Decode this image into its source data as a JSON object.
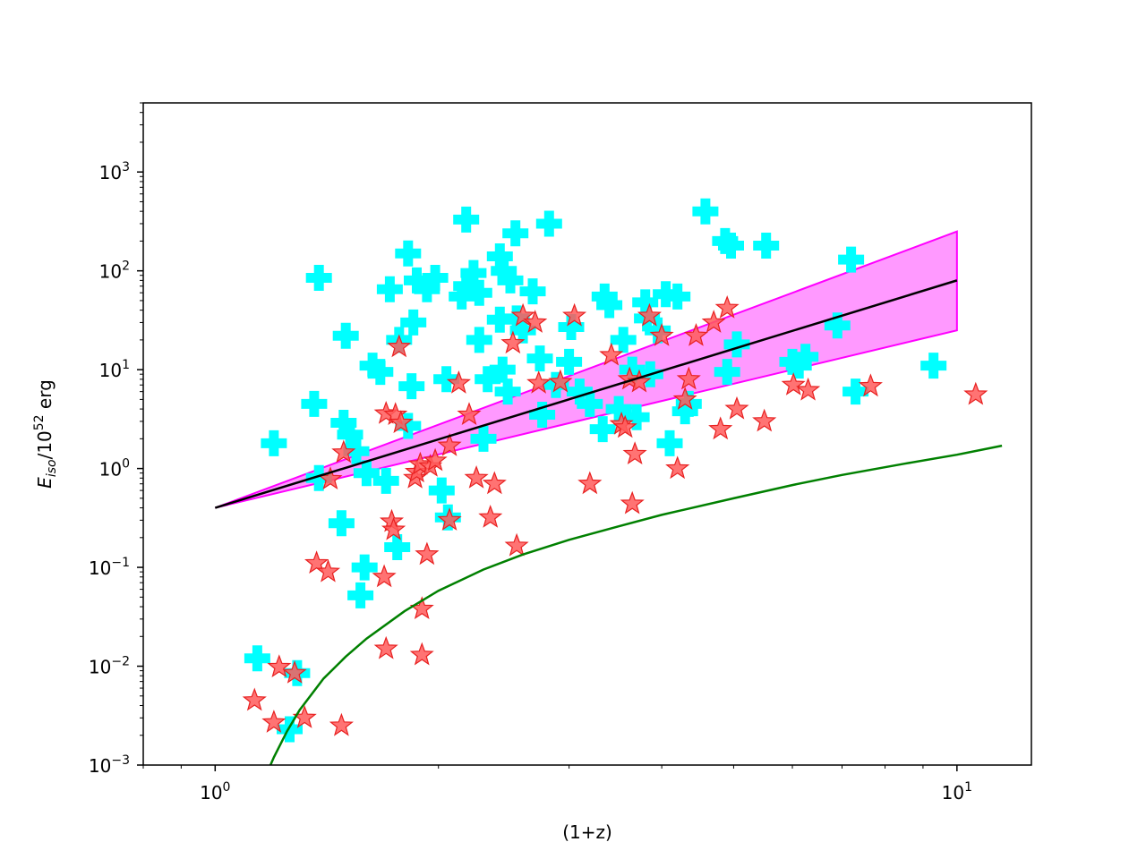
{
  "chart_data": {
    "type": "scatter",
    "xlabel": "(1+z)",
    "ylabel_parts": {
      "base": "E",
      "sub": "iso",
      "mid": "/10",
      "sup": "52",
      "end": " erg"
    },
    "x_scale": "log",
    "y_scale": "log",
    "xlim": [
      0.8,
      12.6
    ],
    "ylim": [
      0.001,
      5000
    ],
    "grid": false,
    "x_ticks": [
      {
        "value": 1,
        "base": "10",
        "exp": "0"
      },
      {
        "value": 10,
        "base": "10",
        "exp": "1"
      }
    ],
    "y_ticks": [
      {
        "value": 0.001,
        "base": "10",
        "exp": "−3"
      },
      {
        "value": 0.01,
        "base": "10",
        "exp": "−2"
      },
      {
        "value": 0.1,
        "base": "10",
        "exp": "−1"
      },
      {
        "value": 1,
        "base": "10",
        "exp": "0"
      },
      {
        "value": 10,
        "base": "10",
        "exp": "1"
      },
      {
        "value": 100,
        "base": "10",
        "exp": "2"
      },
      {
        "value": 1000,
        "base": "10",
        "exp": "3"
      }
    ],
    "colors": {
      "cross": "#00ffff",
      "star_fill": "#ff5a5a",
      "star_edge": "#e82020",
      "band_fill": "#ff99ff",
      "band_edge": "#ff00ff",
      "fit_line": "#000000",
      "limit_curve": "#008000"
    },
    "series": [
      {
        "marker": "plus",
        "points": [
          [
            1.14,
            0.012
          ],
          [
            1.29,
            0.0085
          ],
          [
            1.26,
            0.0023
          ],
          [
            1.38,
            85
          ],
          [
            1.36,
            4.5
          ],
          [
            1.2,
            1.8
          ],
          [
            1.38,
            0.8
          ],
          [
            1.5,
            22
          ],
          [
            1.49,
            2.9
          ],
          [
            1.52,
            2.2
          ],
          [
            1.55,
            1.5
          ],
          [
            1.48,
            0.28
          ],
          [
            1.59,
            0.1
          ],
          [
            1.57,
            0.052
          ],
          [
            1.63,
            11
          ],
          [
            1.67,
            9.5
          ],
          [
            1.6,
            0.9
          ],
          [
            1.7,
            0.75
          ],
          [
            1.72,
            65
          ],
          [
            1.77,
            20
          ],
          [
            1.82,
            2.7
          ],
          [
            1.76,
            0.16
          ],
          [
            1.82,
            150
          ],
          [
            1.85,
            30
          ],
          [
            1.84,
            6.8
          ],
          [
            1.87,
            80
          ],
          [
            1.93,
            65
          ],
          [
            1.98,
            85
          ],
          [
            2.05,
            8
          ],
          [
            2.02,
            0.6
          ],
          [
            2.06,
            0.32
          ],
          [
            2.15,
            55
          ],
          [
            2.18,
            70
          ],
          [
            2.23,
            95
          ],
          [
            2.27,
            60
          ],
          [
            2.18,
            330
          ],
          [
            2.27,
            20
          ],
          [
            2.3,
            2
          ],
          [
            2.33,
            8
          ],
          [
            2.42,
            140
          ],
          [
            2.45,
            100
          ],
          [
            2.42,
            32
          ],
          [
            2.44,
            10
          ],
          [
            2.48,
            6
          ],
          [
            2.5,
            80
          ],
          [
            2.54,
            240
          ],
          [
            2.55,
            33
          ],
          [
            2.6,
            25
          ],
          [
            2.68,
            62
          ],
          [
            2.74,
            13
          ],
          [
            2.76,
            3.5
          ],
          [
            2.82,
            300
          ],
          [
            2.88,
            7
          ],
          [
            3.0,
            12
          ],
          [
            3.02,
            27
          ],
          [
            3.1,
            6
          ],
          [
            3.2,
            4.5
          ],
          [
            3.33,
            2.5
          ],
          [
            3.35,
            55
          ],
          [
            3.4,
            45
          ],
          [
            3.5,
            4
          ],
          [
            3.55,
            20
          ],
          [
            3.65,
            10
          ],
          [
            3.7,
            3.3
          ],
          [
            3.8,
            48
          ],
          [
            3.82,
            33
          ],
          [
            3.86,
            9
          ],
          [
            3.95,
            25
          ],
          [
            4.05,
            58
          ],
          [
            4.1,
            1.8
          ],
          [
            4.2,
            55
          ],
          [
            4.3,
            3.8
          ],
          [
            4.35,
            4.5
          ],
          [
            4.58,
            400
          ],
          [
            4.87,
            200
          ],
          [
            4.96,
            180
          ],
          [
            4.9,
            9.5
          ],
          [
            5.05,
            18
          ],
          [
            5.53,
            180
          ],
          [
            6.0,
            12
          ],
          [
            6.12,
            11
          ],
          [
            6.25,
            13.5
          ],
          [
            6.9,
            28
          ],
          [
            7.2,
            130
          ],
          [
            7.3,
            6
          ],
          [
            9.3,
            11
          ]
        ]
      },
      {
        "marker": "star",
        "points": [
          [
            1.13,
            0.0045
          ],
          [
            1.2,
            0.0027
          ],
          [
            1.22,
            0.0098
          ],
          [
            1.28,
            0.0085
          ],
          [
            1.32,
            0.003
          ],
          [
            1.37,
            0.11
          ],
          [
            1.42,
            0.09
          ],
          [
            1.43,
            0.78
          ],
          [
            1.49,
            1.45
          ],
          [
            1.48,
            0.0025
          ],
          [
            1.69,
            0.08
          ],
          [
            1.7,
            3.6
          ],
          [
            1.73,
            0.29
          ],
          [
            1.74,
            0.24
          ],
          [
            1.75,
            3.5
          ],
          [
            1.7,
            0.015
          ],
          [
            1.78,
            2.9
          ],
          [
            1.77,
            17
          ],
          [
            1.86,
            0.8
          ],
          [
            1.87,
            0.92
          ],
          [
            1.89,
            1.1
          ],
          [
            1.9,
            0.038
          ],
          [
            1.9,
            0.013
          ],
          [
            1.93,
            0.135
          ],
          [
            1.95,
            1.05
          ],
          [
            1.98,
            1.2
          ],
          [
            2.07,
            1.7
          ],
          [
            2.07,
            0.3
          ],
          [
            2.13,
            7.3
          ],
          [
            2.2,
            3.5
          ],
          [
            2.25,
            0.8
          ],
          [
            2.35,
            0.32
          ],
          [
            2.38,
            0.7
          ],
          [
            2.52,
            18.5
          ],
          [
            2.55,
            0.165
          ],
          [
            2.6,
            35
          ],
          [
            2.7,
            30
          ],
          [
            2.73,
            7.3
          ],
          [
            2.92,
            7.5
          ],
          [
            3.05,
            35
          ],
          [
            3.2,
            0.7
          ],
          [
            3.42,
            14
          ],
          [
            3.53,
            2.8
          ],
          [
            3.57,
            2.6
          ],
          [
            3.62,
            8
          ],
          [
            3.65,
            0.44
          ],
          [
            3.68,
            1.4
          ],
          [
            3.73,
            7.5
          ],
          [
            3.85,
            35
          ],
          [
            4.0,
            22
          ],
          [
            4.2,
            1.0
          ],
          [
            4.3,
            5
          ],
          [
            4.35,
            8
          ],
          [
            4.45,
            22
          ],
          [
            4.7,
            30
          ],
          [
            4.8,
            2.5
          ],
          [
            4.9,
            42
          ],
          [
            5.05,
            4
          ],
          [
            5.5,
            3
          ],
          [
            6.02,
            7
          ],
          [
            6.3,
            6.2
          ],
          [
            7.65,
            6.8
          ],
          [
            10.6,
            5.6
          ]
        ]
      }
    ],
    "fit_line": {
      "x": [
        1,
        10
      ],
      "y": [
        0.4,
        80
      ]
    },
    "band": {
      "x": [
        1,
        10
      ],
      "upper": [
        0.4,
        250
      ],
      "lower": [
        0.4,
        25
      ]
    },
    "limit_curve": {
      "x": [
        1.18,
        1.2,
        1.25,
        1.3,
        1.4,
        1.5,
        1.6,
        1.8,
        2.0,
        2.3,
        2.6,
        3.0,
        3.5,
        4.0,
        5.0,
        6.0,
        7.0,
        8.5,
        10.0,
        11.5
      ],
      "y": [
        0.0009,
        0.0012,
        0.0022,
        0.0036,
        0.0075,
        0.0125,
        0.019,
        0.036,
        0.058,
        0.095,
        0.135,
        0.19,
        0.26,
        0.34,
        0.5,
        0.68,
        0.86,
        1.12,
        1.38,
        1.7
      ]
    }
  }
}
